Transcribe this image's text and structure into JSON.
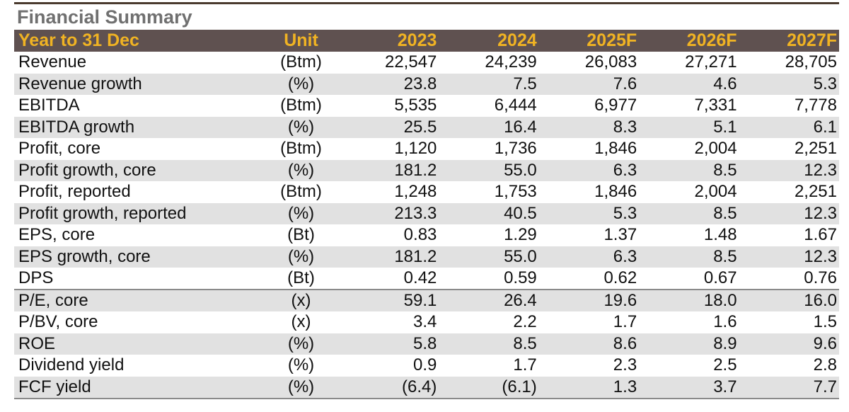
{
  "title": "Financial Summary",
  "header": {
    "label": "Year to 31 Dec",
    "unit": "Unit",
    "years": [
      "2023",
      "2024",
      "2025F",
      "2026F",
      "2027F"
    ]
  },
  "rows": [
    {
      "label": "Revenue",
      "unit": "(Btm)",
      "values": [
        "22,547",
        "24,239",
        "26,083",
        "27,271",
        "28,705"
      ]
    },
    {
      "label": "Revenue growth",
      "unit": "(%)",
      "values": [
        "23.8",
        "7.5",
        "7.6",
        "4.6",
        "5.3"
      ]
    },
    {
      "label": "EBITDA",
      "unit": "(Btm)",
      "values": [
        "5,535",
        "6,444",
        "6,977",
        "7,331",
        "7,778"
      ]
    },
    {
      "label": "EBITDA growth",
      "unit": "(%)",
      "values": [
        "25.5",
        "16.4",
        "8.3",
        "5.1",
        "6.1"
      ]
    },
    {
      "label": "Profit, core",
      "unit": "(Btm)",
      "values": [
        "1,120",
        "1,736",
        "1,846",
        "2,004",
        "2,251"
      ]
    },
    {
      "label": "Profit growth, core",
      "unit": "(%)",
      "values": [
        "181.2",
        "55.0",
        "6.3",
        "8.5",
        "12.3"
      ]
    },
    {
      "label": "Profit, reported",
      "unit": "(Btm)",
      "values": [
        "1,248",
        "1,753",
        "1,846",
        "2,004",
        "2,251"
      ]
    },
    {
      "label": "Profit growth, reported",
      "unit": "(%)",
      "values": [
        "213.3",
        "40.5",
        "5.3",
        "8.5",
        "12.3"
      ]
    },
    {
      "label": "EPS, core",
      "unit": "(Bt)",
      "values": [
        "0.83",
        "1.29",
        "1.37",
        "1.48",
        "1.67"
      ]
    },
    {
      "label": "EPS growth, core",
      "unit": "(%)",
      "values": [
        "181.2",
        "55.0",
        "6.3",
        "8.5",
        "12.3"
      ]
    },
    {
      "label": "DPS",
      "unit": "(Bt)",
      "values": [
        "0.42",
        "0.59",
        "0.62",
        "0.67",
        "0.76"
      ]
    },
    {
      "label": "P/E, core",
      "unit": "(x)",
      "values": [
        "59.1",
        "26.4",
        "19.6",
        "18.0",
        "16.0"
      ]
    },
    {
      "label": "P/BV, core",
      "unit": "(x)",
      "values": [
        "3.4",
        "2.2",
        "1.7",
        "1.6",
        "1.5"
      ]
    },
    {
      "label": "ROE",
      "unit": "(%)",
      "values": [
        "5.8",
        "8.5",
        "8.6",
        "8.9",
        "9.6"
      ]
    },
    {
      "label": "Dividend yield",
      "unit": "(%)",
      "values": [
        "0.9",
        "1.7",
        "2.3",
        "2.5",
        "2.8"
      ]
    },
    {
      "label": "FCF yield",
      "unit": "(%)",
      "values": [
        "(6.4)",
        "(6.1)",
        "1.3",
        "3.7",
        "7.7"
      ]
    }
  ],
  "colors": {
    "header_bg": "#5f5150",
    "header_text": "#f0b323",
    "title_text": "#707070",
    "stripe": "#e1e1e1"
  }
}
